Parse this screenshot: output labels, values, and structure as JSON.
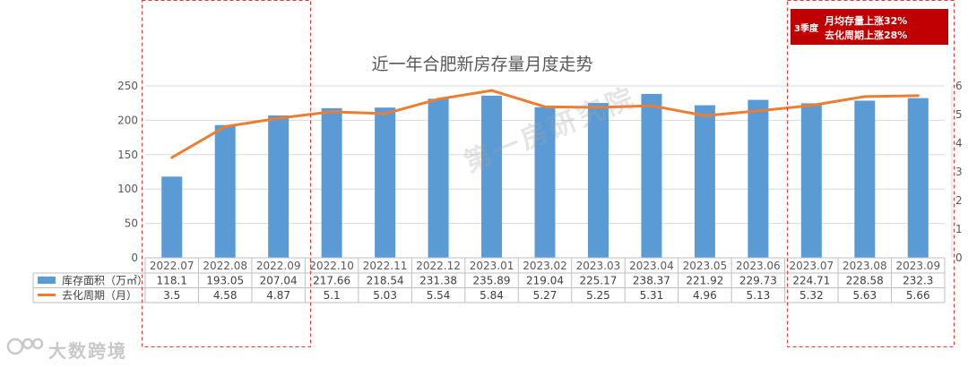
{
  "chart_data": {
    "type": "bar+line",
    "title": "近一年合肥新房存量月度走势",
    "categories": [
      "2022.07",
      "2022.08",
      "2022.09",
      "2022.10",
      "2022.11",
      "2022.12",
      "2023.01",
      "2023.02",
      "2023.03",
      "2023.04",
      "2023.05",
      "2023.06",
      "2023.07",
      "2023.08",
      "2023.09"
    ],
    "series": [
      {
        "name": "库存面积（万㎡）",
        "type": "bar",
        "axis": "left",
        "color": "#5b9bd5",
        "values": [
          118.1,
          193.05,
          207.04,
          217.66,
          218.54,
          231.38,
          235.89,
          219.04,
          225.17,
          238.37,
          221.92,
          229.73,
          224.71,
          228.58,
          232.3
        ],
        "labels": [
          "118.1",
          "193.05",
          "207.04",
          "217.66",
          "218.54",
          "231.38",
          "235.89",
          "219.04",
          "225.17",
          "238.37",
          "221.92",
          "229.73",
          "224.71",
          "228.58",
          "232.3"
        ]
      },
      {
        "name": "去化周期（月）",
        "type": "line",
        "axis": "right",
        "color": "#ed7d31",
        "values": [
          3.5,
          4.58,
          4.87,
          5.1,
          5.03,
          5.54,
          5.84,
          5.27,
          5.25,
          5.31,
          4.96,
          5.13,
          5.32,
          5.63,
          5.66
        ],
        "labels": [
          "3.5",
          "4.58",
          "4.87",
          "5.1",
          "5.03",
          "5.54",
          "5.84",
          "5.27",
          "5.25",
          "5.31",
          "4.96",
          "5.13",
          "5.32",
          "5.63",
          "5.66"
        ]
      }
    ],
    "ylim_left": [
      0,
      250
    ],
    "yticks_left": [
      "0",
      "50",
      "100",
      "150",
      "200",
      "250"
    ],
    "ylim_right": [
      0,
      6
    ],
    "yticks_right": [
      "0",
      "1",
      "2",
      "3",
      "4",
      "5",
      "6"
    ],
    "grid": true,
    "legend": "data-table"
  },
  "annotation": {
    "quarter": "3季度",
    "line1": "月均存量上涨32%",
    "line2": "去化周期上涨28%",
    "color": "#c00000"
  },
  "watermark": {
    "center": "第一房研究院",
    "corner": "大数跨境"
  }
}
